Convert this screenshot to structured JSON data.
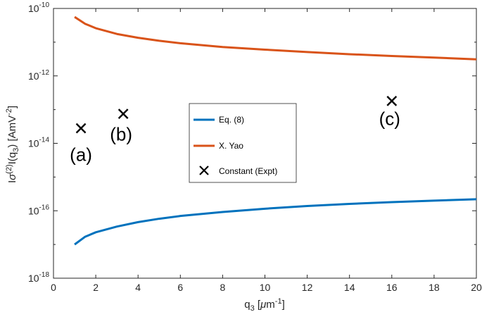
{
  "chart_data": {
    "type": "line",
    "xlabel": "q",
    "xlabel_sub": "3",
    "xlabel_unit_open": " [",
    "xlabel_mu": "μ",
    "xlabel_unit_m": "m",
    "xlabel_sup": "-1",
    "xlabel_close": "]",
    "ylabel": "Iσ(2)I(q3) [AmV-2]",
    "xlim": [
      0,
      20
    ],
    "ylim_log10": [
      -18,
      -10
    ],
    "yscale": "log",
    "grid": false,
    "legend_position": "center",
    "x_ticks": [
      "0",
      "2",
      "4",
      "6",
      "8",
      "10",
      "12",
      "14",
      "16",
      "18",
      "20"
    ],
    "y_ticks": [
      {
        "base": "10",
        "exp": "-10"
      },
      {
        "base": "10",
        "exp": "-12"
      },
      {
        "base": "10",
        "exp": "-14"
      },
      {
        "base": "10",
        "exp": "-16"
      },
      {
        "base": "10",
        "exp": "-18"
      }
    ],
    "series": [
      {
        "name": "Eq. (8)",
        "color": "#0072bd",
        "marker": "line",
        "x": [
          1.0,
          1.5,
          2.0,
          3.0,
          4.0,
          5.0,
          6.0,
          8.0,
          10.0,
          12.0,
          14.0,
          16.0,
          18.0,
          20.0
        ],
        "y": [
          1e-17,
          1.7e-17,
          2.3e-17,
          3.4e-17,
          4.6e-17,
          5.8e-17,
          7e-17,
          9.2e-17,
          1.15e-16,
          1.38e-16,
          1.6e-16,
          1.8e-16,
          2e-16,
          2.2e-16
        ]
      },
      {
        "name": "X. Yao",
        "color": "#d95319",
        "marker": "line",
        "x": [
          1.0,
          1.5,
          2.0,
          3.0,
          4.0,
          5.0,
          6.0,
          8.0,
          10.0,
          12.0,
          14.0,
          16.0,
          18.0,
          20.0
        ],
        "y": [
          5.6e-11,
          3.5e-11,
          2.6e-11,
          1.75e-11,
          1.35e-11,
          1.1e-11,
          9.3e-12,
          7.2e-12,
          6e-12,
          5.1e-12,
          4.4e-12,
          3.9e-12,
          3.5e-12,
          3.1e-12
        ]
      },
      {
        "name": "Constant (Expt)",
        "color": "#000000",
        "marker": "x",
        "x": [
          1.3,
          3.3,
          16.0
        ],
        "y": [
          2.8e-14,
          7.5e-14,
          1.8e-13
        ]
      }
    ],
    "annotations": [
      {
        "text": "(a)",
        "x": 1.3,
        "y": 3e-15
      },
      {
        "text": "(b)",
        "x": 3.2,
        "y": 1.2e-14
      },
      {
        "text": "(c)",
        "x": 15.9,
        "y": 3.5e-14
      }
    ]
  }
}
